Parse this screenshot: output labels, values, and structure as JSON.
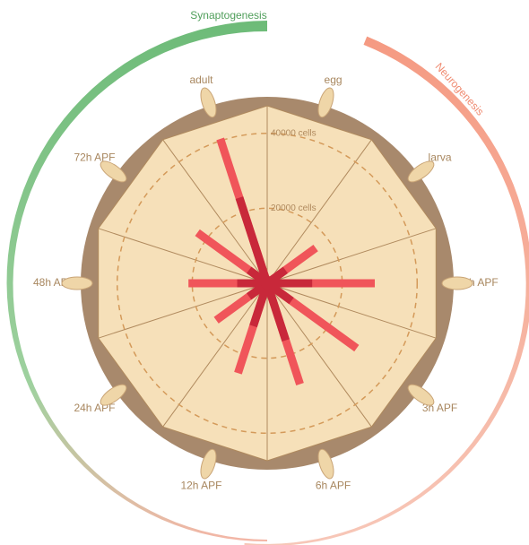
{
  "chart_data": {
    "type": "radial-bar",
    "categories": [
      "egg",
      "larva",
      "0h APF",
      "3h APF",
      "6h APF",
      "12h APF",
      "24h APF",
      "48h APF",
      "72h APF",
      "adult"
    ],
    "series": [
      {
        "color": "#f0555a",
        "values": [
          2000,
          16000,
          28700,
          29500,
          28300,
          25200,
          16800,
          21000,
          23000,
          40500
        ]
      },
      {
        "color": "#c8283a",
        "values": [
          1000,
          6000,
          12000,
          8000,
          16000,
          12000,
          6000,
          8000,
          6000,
          24000
        ]
      }
    ],
    "rlim": [
      0,
      44000
    ],
    "rticks": [
      {
        "value": 20000,
        "label": "20000 cells"
      },
      {
        "value": 40000,
        "label": "40000 cells"
      }
    ],
    "annotations": [
      "Synaptogenesis",
      "Neurogenesis"
    ]
  }
}
